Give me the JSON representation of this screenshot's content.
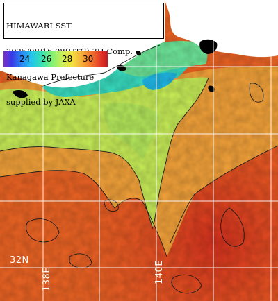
{
  "caption": {
    "line1": "HIMAWARI SST",
    "line2": "2025/08/16 08(UTC) 3H Comp.",
    "line3": "Kanagawa Prefecture",
    "line4": "supplied by JAXA"
  },
  "legend": {
    "ticks": [
      "24",
      "26",
      "28",
      "30"
    ]
  },
  "grid_labels": {
    "lat": "32N",
    "lon_left": "138E",
    "lon_right": "140E"
  },
  "colors": {
    "land": "#ffffff",
    "cloud": "#000000",
    "grid": "#ffffff",
    "cool_bay": "#2ee0c0",
    "mid_water": "#c8ee58",
    "warm_water": "#f07a2c",
    "hot_water": "#e23c22"
  }
}
